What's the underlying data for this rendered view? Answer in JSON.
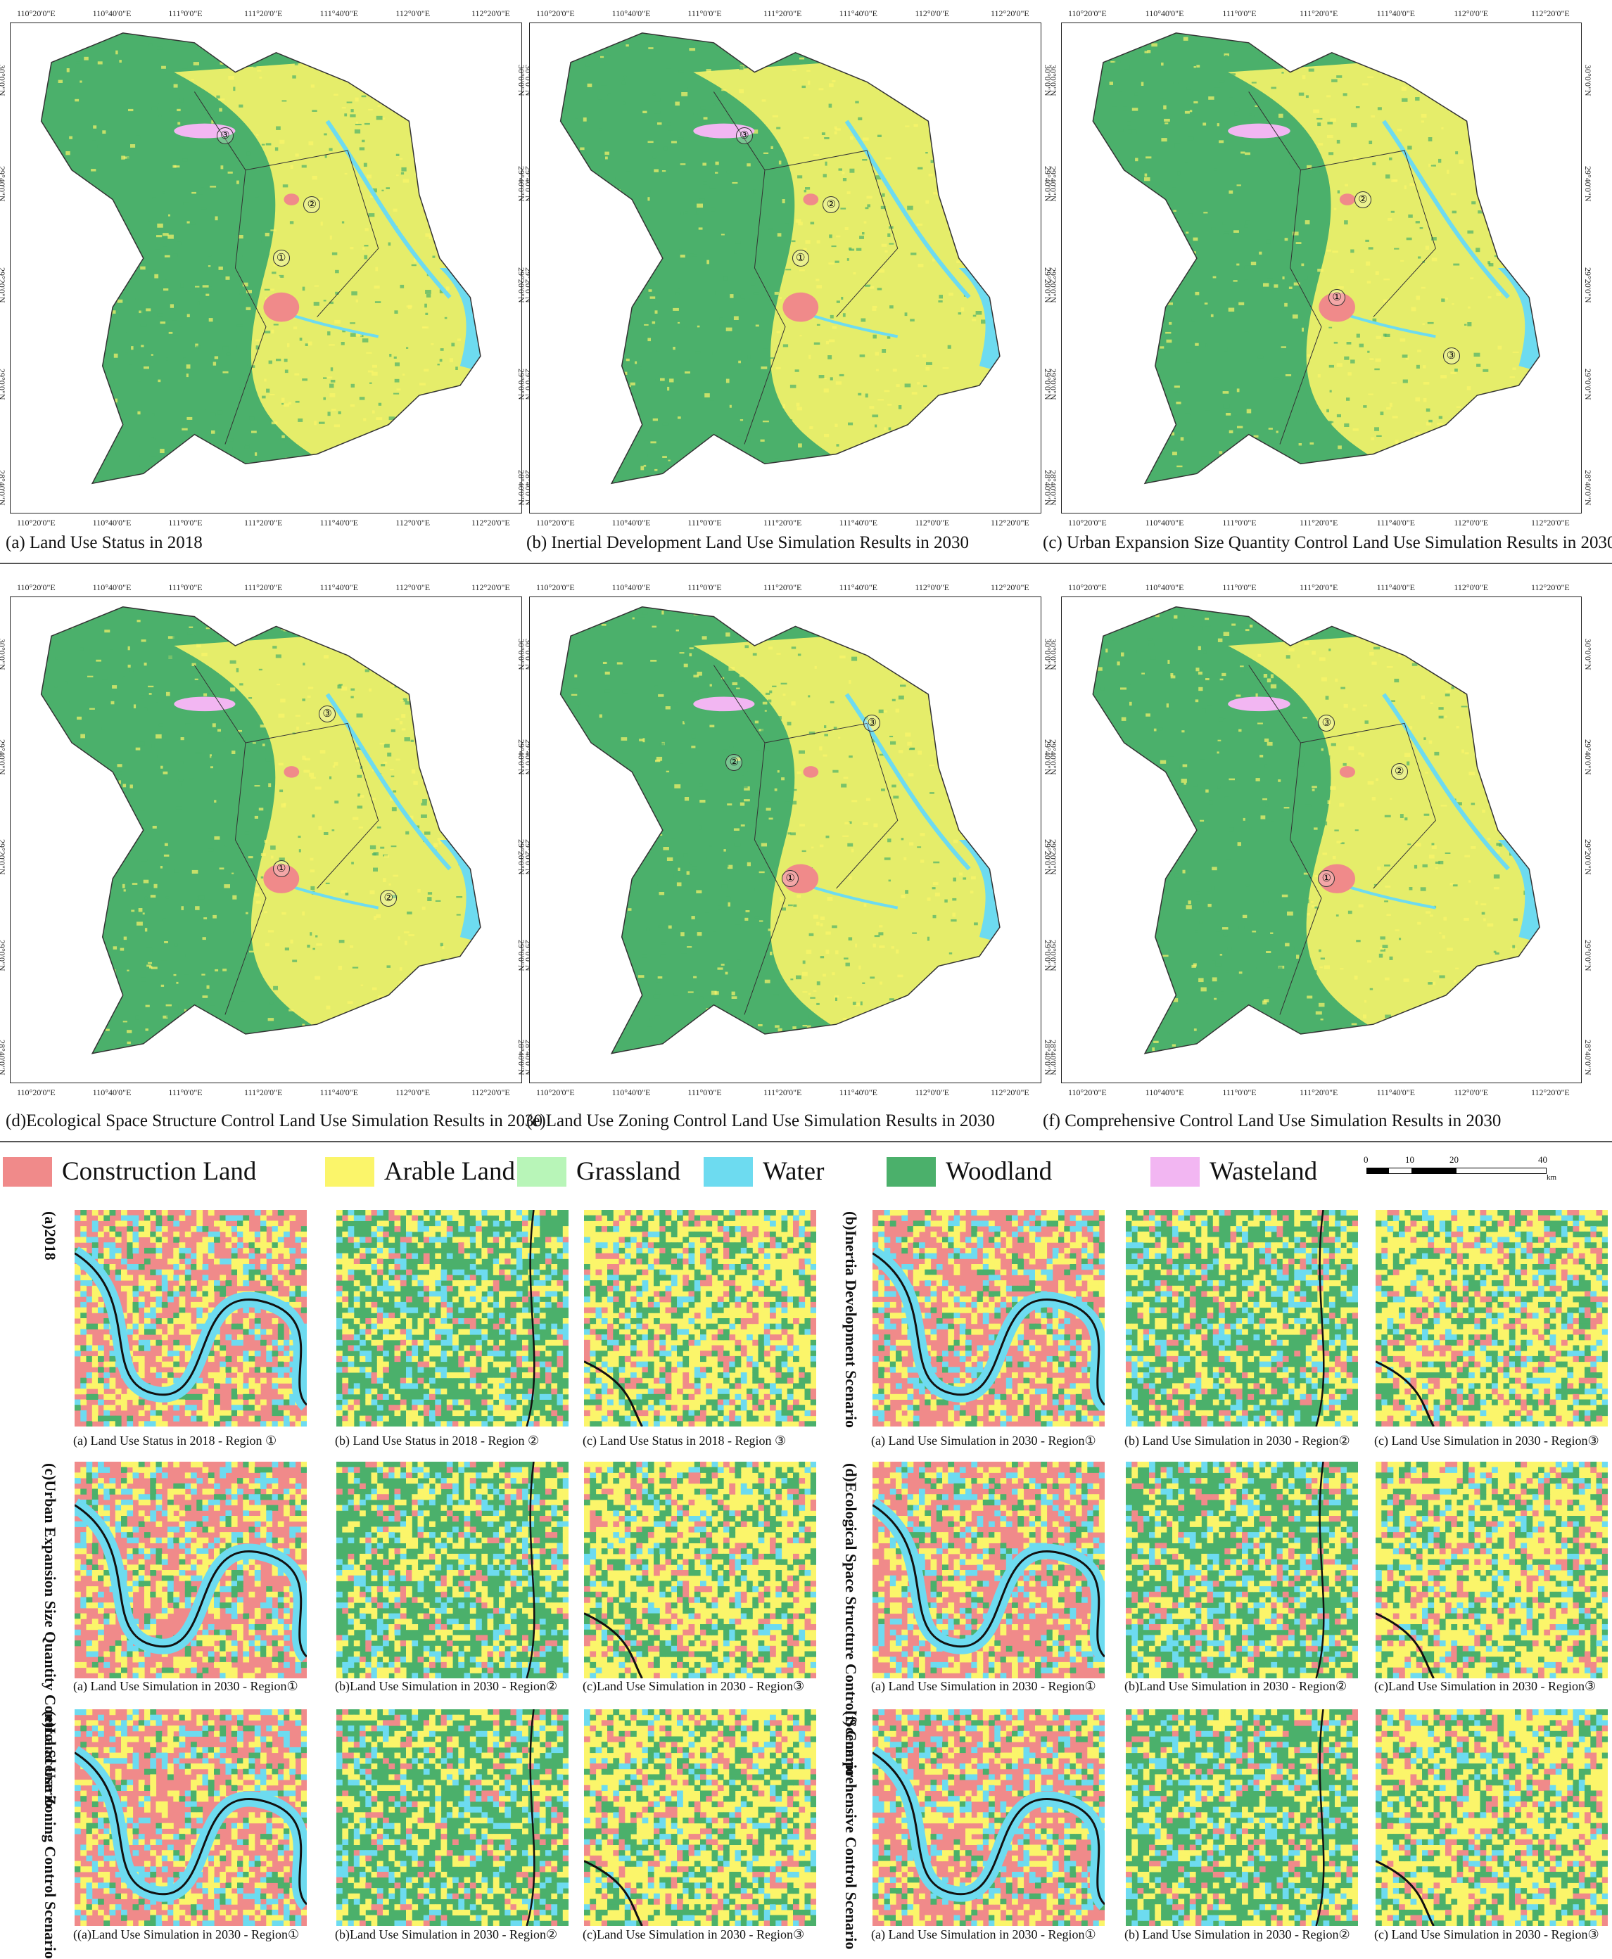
{
  "colors": {
    "construction": "#f08a8a",
    "arable": "#fbf56a",
    "grassland": "#b8f5b8",
    "water": "#6ddbf0",
    "woodland": "#4bb06b",
    "wasteland": "#f2b6f2"
  },
  "top_maps": [
    {
      "caption": "(a) Land Use Status in 2018",
      "markers": [
        "①",
        "②",
        "③"
      ]
    },
    {
      "caption": "(b)  Inertial Development Land Use Simulation Results in 2030",
      "markers": [
        "①",
        "②",
        "③"
      ]
    },
    {
      "caption": "(c)  Urban Expansion Size Quantity Control Land Use Simulation Results in 2030",
      "markers": [
        "①",
        "②",
        "③"
      ]
    },
    {
      "caption": "(d)Ecological Space Structure Control Land Use Simulation Results in 2030",
      "markers": [
        "①",
        "②",
        "③"
      ]
    },
    {
      "caption": "(e)Land Use Zoning Control Land Use Simulation Results in 2030",
      "markers": [
        "①",
        "②",
        "③"
      ]
    },
    {
      "caption": "(f)  Comprehensive Control Land Use Simulation Results in 2030",
      "markers": [
        "①",
        "②",
        "③"
      ]
    }
  ],
  "x_ticks": [
    "110°20'0\"E",
    "110°40'0\"E",
    "111°0'0\"E",
    "111°20'0\"E",
    "111°40'0\"E",
    "112°0'0\"E",
    "112°20'0\"E"
  ],
  "y_ticks": [
    "30°0'0\"N",
    "29°40'0\"N",
    "29°20'0\"N",
    "29°0'0\"N",
    "28°40'0\"N"
  ],
  "legend": [
    {
      "label": "Construction Land",
      "color": "#f08a8a"
    },
    {
      "label": "Arable Land",
      "color": "#fbf56a"
    },
    {
      "label": "Grassland",
      "color": "#b8f5b8"
    },
    {
      "label": "Water",
      "color": "#6ddbf0"
    },
    {
      "label": "Woodland",
      "color": "#4bb06b"
    },
    {
      "label": "Wasteland",
      "color": "#f2b6f2"
    }
  ],
  "scale_bar": {
    "labels": [
      "0",
      "10",
      "20",
      "40"
    ],
    "unit": "km"
  },
  "scenario_labels": [
    "(a)2018",
    "(b)Inertia Development Scenario",
    "(c)Urban Expansion Size Quantity Control Scenario",
    "(d)Ecological Space Structure Control Scenario",
    "(e)Land Use Zoning Control Scenario",
    "(f) Comprehensive Control Scenario"
  ],
  "zoom_captions": [
    [
      "(a) Land Use Status in 2018 - Region ①",
      "(b) Land Use Status in 2018 - Region ②",
      "(c) Land Use Status in 2018 - Region ③"
    ],
    [
      "(a) Land Use Simulation in 2030 - Region①",
      "(b) Land Use Simulation in 2030 - Region②",
      "(c) Land Use Simulation in 2030 - Region③"
    ],
    [
      "(a) Land Use Simulation in 2030 - Region①",
      "(b)Land Use Simulation in 2030 - Region②",
      "(c)Land Use Simulation in 2030 - Region③"
    ],
    [
      "(a) Land Use Simulation in 2030 - Region①",
      "(b)Land Use Simulation in 2030 - Region②",
      "(c)Land Use Simulation in 2030 - Region③"
    ],
    [
      "((a)Land Use Simulation in 2030 - Region①",
      "(b)Land Use Simulation in 2030 - Region②",
      "(c)Land Use Simulation in 2030 - Region③"
    ],
    [
      "(a) Land Use Simulation in 2030 - Region①",
      "(b) Land Use Simulation in 2030 - Region②",
      "(c) Land Use Simulation in 2030 - Region③"
    ]
  ]
}
